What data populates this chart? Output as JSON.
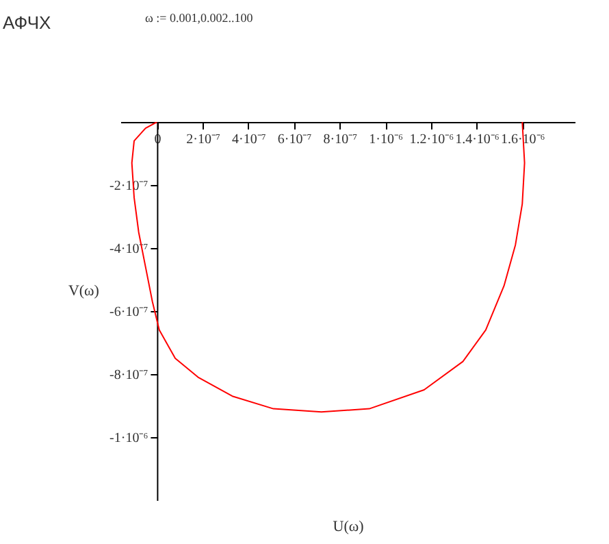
{
  "chart_data": {
    "type": "line",
    "title": "АФЧХ",
    "annotations": [
      "ω := 0.001,0.002..100"
    ],
    "xlabel": "U(ω)",
    "ylabel": "V(ω)",
    "xlim": [
      -1.6e-07,
      1.83e-06
    ],
    "ylim": [
      -1.2e-06,
      0
    ],
    "xticks": [
      0,
      {
        "value": 2e-07,
        "label": "2·10⁻⁷"
      },
      {
        "value": 4e-07,
        "label": "4·10⁻⁷"
      },
      {
        "value": 6e-07,
        "label": "6·10⁻⁷"
      },
      {
        "value": 8e-07,
        "label": "8·10⁻⁷"
      },
      {
        "value": 1e-06,
        "label": "1·10⁻⁶"
      },
      {
        "value": 1.2e-06,
        "label": "1.2·10⁻⁶"
      },
      {
        "value": 1.4e-06,
        "label": "1.4·10⁻⁶"
      },
      {
        "value": 1.6e-06,
        "label": "1.6·10⁻⁶"
      }
    ],
    "yticks": [
      {
        "value": -2e-07,
        "label": "-2·10⁻⁷"
      },
      {
        "value": -4e-07,
        "label": "-4·10⁻⁷"
      },
      {
        "value": -6e-07,
        "label": "-6·10⁻⁷"
      },
      {
        "value": -8e-07,
        "label": "-8·10⁻⁷"
      },
      {
        "value": -1e-06,
        "label": "-1·10⁻⁶"
      }
    ],
    "grid": false,
    "marker": "none",
    "line_style": "solid",
    "series": [
      {
        "color": "#ff0000",
        "x": [
          1.6e-06,
          1.61e-06,
          1.6e-06,
          1.57e-06,
          1.52e-06,
          1.44e-06,
          1.34e-06,
          1.17e-06,
          9.3e-07,
          7.2e-07,
          5.1e-07,
          3.3e-07,
          1.8e-07,
          8e-08,
          1e-08,
          -2e-08,
          -5e-08,
          -8e-08,
          -1e-07,
          -1.1e-07,
          -1e-07,
          -5e-08,
          0
        ],
        "values": [
          0,
          -1.3e-07,
          -2.6e-07,
          -3.9e-07,
          -5.2e-07,
          -6.6e-07,
          -7.6e-07,
          -8.5e-07,
          -9.1e-07,
          -9.2e-07,
          -9.1e-07,
          -8.7e-07,
          -8.1e-07,
          -7.5e-07,
          -6.6e-07,
          -5.7e-07,
          -4.6e-07,
          -3.5e-07,
          -2.4e-07,
          -1.3e-07,
          -6e-08,
          -2e-08,
          0
        ]
      }
    ]
  }
}
